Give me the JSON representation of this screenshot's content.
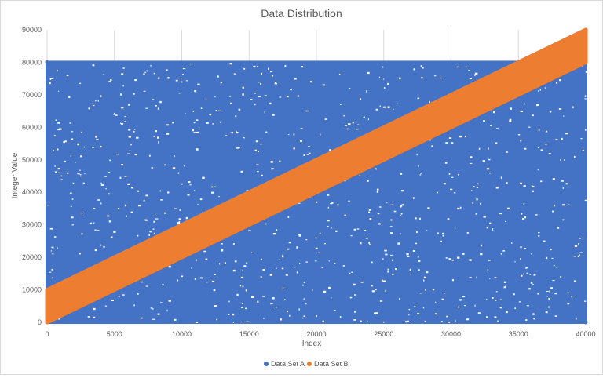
{
  "chart_data": {
    "type": "scatter",
    "title": "Data Distribution",
    "xlabel": "Index",
    "ylabel": "Integer Value",
    "xlim": [
      0,
      40000
    ],
    "ylim": [
      0,
      90000
    ],
    "x_ticks": [
      0,
      5000,
      10000,
      15000,
      20000,
      25000,
      30000,
      35000,
      40000
    ],
    "y_ticks": [
      0,
      10000,
      20000,
      30000,
      40000,
      50000,
      60000,
      70000,
      80000,
      90000
    ],
    "grid": "vertical",
    "legend_position": "bottom",
    "series": [
      {
        "name": "Data Set A",
        "color": "#4472C4",
        "n_points": 40000,
        "distribution": "uniform",
        "x_range": [
          0,
          40000
        ],
        "y_range": [
          0,
          80000
        ],
        "sample_points": [
          [
            0,
            0
          ],
          [
            0,
            80000
          ],
          [
            40000,
            0
          ],
          [
            40000,
            80000
          ],
          [
            20000,
            40000
          ]
        ]
      },
      {
        "name": "Data Set B",
        "color": "#ED7D31",
        "n_points": 40000,
        "distribution": "linear band",
        "x_range": [
          0,
          40000
        ],
        "lower_line": {
          "slope": 2,
          "intercept": 0
        },
        "upper_line": {
          "slope": 2,
          "intercept": 10000
        },
        "sample_points": [
          [
            0,
            0
          ],
          [
            0,
            10000
          ],
          [
            20000,
            40000
          ],
          [
            20000,
            50000
          ],
          [
            40000,
            80000
          ],
          [
            40000,
            90000
          ]
        ]
      }
    ]
  }
}
